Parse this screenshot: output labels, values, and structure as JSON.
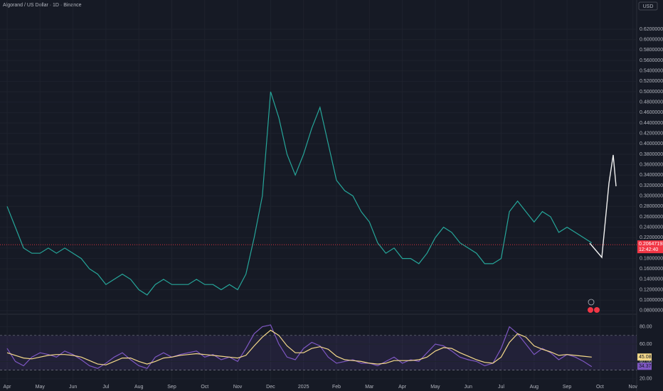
{
  "chart_data": [
    {
      "type": "line",
      "title": "Algorand / US Dollar · 1D · Binance",
      "currency": "USD",
      "categories": [
        "Apr",
        null,
        null,
        null,
        "May",
        null,
        null,
        null,
        "Jun",
        null,
        null,
        null,
        "Jul",
        null,
        null,
        null,
        "Aug",
        null,
        null,
        null,
        "Sep",
        null,
        null,
        null,
        "Oct",
        null,
        null,
        null,
        "Nov",
        null,
        null,
        null,
        "Dec",
        null,
        null,
        null,
        "2025",
        null,
        null,
        null,
        "Feb",
        null,
        null,
        null,
        "Mar",
        null,
        null,
        null,
        "Apr",
        null,
        null,
        null,
        "May",
        null,
        null,
        null,
        "Jun",
        null,
        null,
        null,
        "Jul",
        null,
        null,
        null,
        "Aug",
        null,
        null,
        null,
        "Sep",
        null,
        null,
        null,
        "Oct",
        null,
        null,
        null,
        "Nov"
      ],
      "series": [
        {
          "color": "#26a69a",
          "values": [
            0.28,
            0.24,
            0.2,
            0.19,
            0.19,
            0.2,
            0.19,
            0.2,
            0.19,
            0.18,
            0.16,
            0.15,
            0.13,
            0.14,
            0.15,
            0.14,
            0.12,
            0.11,
            0.13,
            0.14,
            0.13,
            0.13,
            0.13,
            0.14,
            0.13,
            0.13,
            0.12,
            0.13,
            0.12,
            0.15,
            0.22,
            0.3,
            0.5,
            0.45,
            0.38,
            0.34,
            0.38,
            0.43,
            0.47,
            0.4,
            0.33,
            0.31,
            0.3,
            0.27,
            0.25,
            0.21,
            0.19,
            0.2,
            0.18,
            0.18,
            0.17,
            0.19,
            0.22,
            0.24,
            0.23,
            0.21,
            0.2,
            0.19,
            0.17,
            0.17,
            0.18,
            0.27,
            0.29,
            0.27,
            0.25,
            0.27,
            0.26,
            0.23,
            0.24,
            0.23,
            0.22,
            0.21,
            null,
            null,
            null,
            null,
            null
          ]
        }
      ],
      "ylim": [
        0.073,
        0.676
      ],
      "yticks": [
        {
          "value": 0.08,
          "label": "0.08000000"
        },
        {
          "value": 0.1,
          "label": "0.10000000"
        },
        {
          "value": 0.12,
          "label": "0.12000000"
        },
        {
          "value": 0.14,
          "label": "0.14000000"
        },
        {
          "value": 0.16,
          "label": "0.16000000"
        },
        {
          "value": 0.18,
          "label": "0.18000000"
        },
        {
          "value": 0.2,
          "label": "0.20000000"
        },
        {
          "value": 0.22,
          "label": "0.22000000"
        },
        {
          "value": 0.24,
          "label": "0.24000000"
        },
        {
          "value": 0.26,
          "label": "0.26000000"
        },
        {
          "value": 0.28,
          "label": "0.28000000"
        },
        {
          "value": 0.3,
          "label": "0.30000000"
        },
        {
          "value": 0.32,
          "label": "0.32000000"
        },
        {
          "value": 0.34,
          "label": "0.34000000"
        },
        {
          "value": 0.36,
          "label": "0.36000000"
        },
        {
          "value": 0.38,
          "label": "0.38000000"
        },
        {
          "value": 0.4,
          "label": "0.40000000"
        },
        {
          "value": 0.42,
          "label": "0.42000000"
        },
        {
          "value": 0.44,
          "label": "0.44000000"
        },
        {
          "value": 0.46,
          "label": "0.46000000"
        },
        {
          "value": 0.48,
          "label": "0.48000000"
        },
        {
          "value": 0.5,
          "label": "0.50000000"
        },
        {
          "value": 0.52,
          "label": "0.52000000"
        },
        {
          "value": 0.54,
          "label": "0.54000000"
        },
        {
          "value": 0.56,
          "label": "0.56000000"
        },
        {
          "value": 0.58,
          "label": "0.58000000"
        },
        {
          "value": 0.6,
          "label": "0.60000000"
        },
        {
          "value": 0.62,
          "label": "0.62000000"
        }
      ],
      "last_price": {
        "value": 0.20647193,
        "label": "0.20647193",
        "color": "#f23645"
      },
      "countdown": "12:42:40"
    },
    {
      "type": "line",
      "series": [
        {
          "color": "#7e57c2",
          "values": [
            55,
            40,
            35,
            45,
            50,
            48,
            45,
            52,
            48,
            42,
            35,
            32,
            38,
            45,
            50,
            42,
            35,
            32,
            45,
            50,
            45,
            48,
            50,
            52,
            45,
            48,
            42,
            45,
            40,
            55,
            72,
            80,
            82,
            60,
            45,
            42,
            55,
            62,
            58,
            45,
            38,
            40,
            42,
            38,
            38,
            35,
            40,
            45,
            38,
            42,
            40,
            50,
            60,
            58,
            52,
            45,
            42,
            40,
            35,
            38,
            55,
            80,
            72,
            60,
            48,
            55,
            50,
            42,
            48,
            45,
            40,
            34,
            null,
            null,
            null,
            null,
            null
          ]
        },
        {
          "color": "#f5d98b",
          "values": [
            50,
            47,
            44,
            43,
            45,
            47,
            48,
            48,
            47,
            45,
            41,
            37,
            36,
            40,
            44,
            44,
            40,
            37,
            40,
            44,
            45,
            47,
            48,
            49,
            48,
            47,
            46,
            45,
            44,
            47,
            58,
            68,
            76,
            70,
            58,
            50,
            50,
            55,
            57,
            54,
            46,
            42,
            41,
            40,
            38,
            37,
            38,
            41,
            41,
            41,
            42,
            45,
            52,
            56,
            55,
            50,
            46,
            42,
            39,
            38,
            45,
            62,
            72,
            68,
            58,
            54,
            51,
            47,
            48,
            47,
            46,
            45,
            null,
            null,
            null,
            null,
            null
          ]
        }
      ],
      "ylim": [
        15.8,
        94.4
      ],
      "yticks": [
        {
          "value": 20,
          "label": "20.00"
        },
        {
          "value": 40,
          "label": "40.00"
        },
        {
          "value": 60,
          "label": "60.00"
        },
        {
          "value": 80,
          "label": "80.00"
        }
      ],
      "bands": [
        70,
        30
      ],
      "last_values": [
        {
          "value": 45.08,
          "label": "45.08"
        },
        {
          "value": 34.37,
          "label": "34.37"
        }
      ]
    }
  ]
}
